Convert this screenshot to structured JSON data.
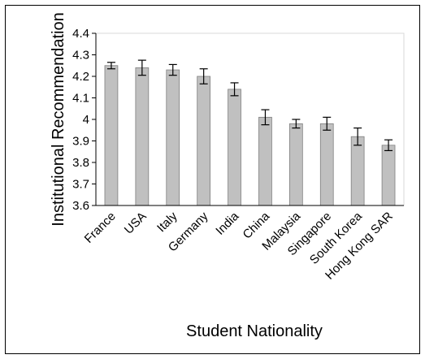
{
  "chart_data": {
    "type": "bar",
    "title": "",
    "xlabel": "Student Nationality",
    "ylabel": "Institutional Recommendation",
    "categories": [
      "France",
      "USA",
      "Italy",
      "Germany",
      "India",
      "China",
      "Malaysia",
      "Singapore",
      "South Korea",
      "Hong Kong SAR"
    ],
    "values": [
      4.25,
      4.24,
      4.23,
      4.2,
      4.14,
      4.01,
      3.98,
      3.98,
      3.92,
      3.88
    ],
    "errors": [
      0.015,
      0.035,
      0.025,
      0.035,
      0.03,
      0.035,
      0.02,
      0.03,
      0.04,
      0.025
    ],
    "ylim": [
      3.6,
      4.4
    ],
    "yticks": [
      "3.6",
      "3.7",
      "3.8",
      "3.9",
      "4",
      "4.1",
      "4.2",
      "4.3",
      "4.4"
    ],
    "grid": false,
    "bar_color": "#c0c0c0",
    "bar_edge_color": "#7f7f7f",
    "error_bar_color": "#000000"
  }
}
